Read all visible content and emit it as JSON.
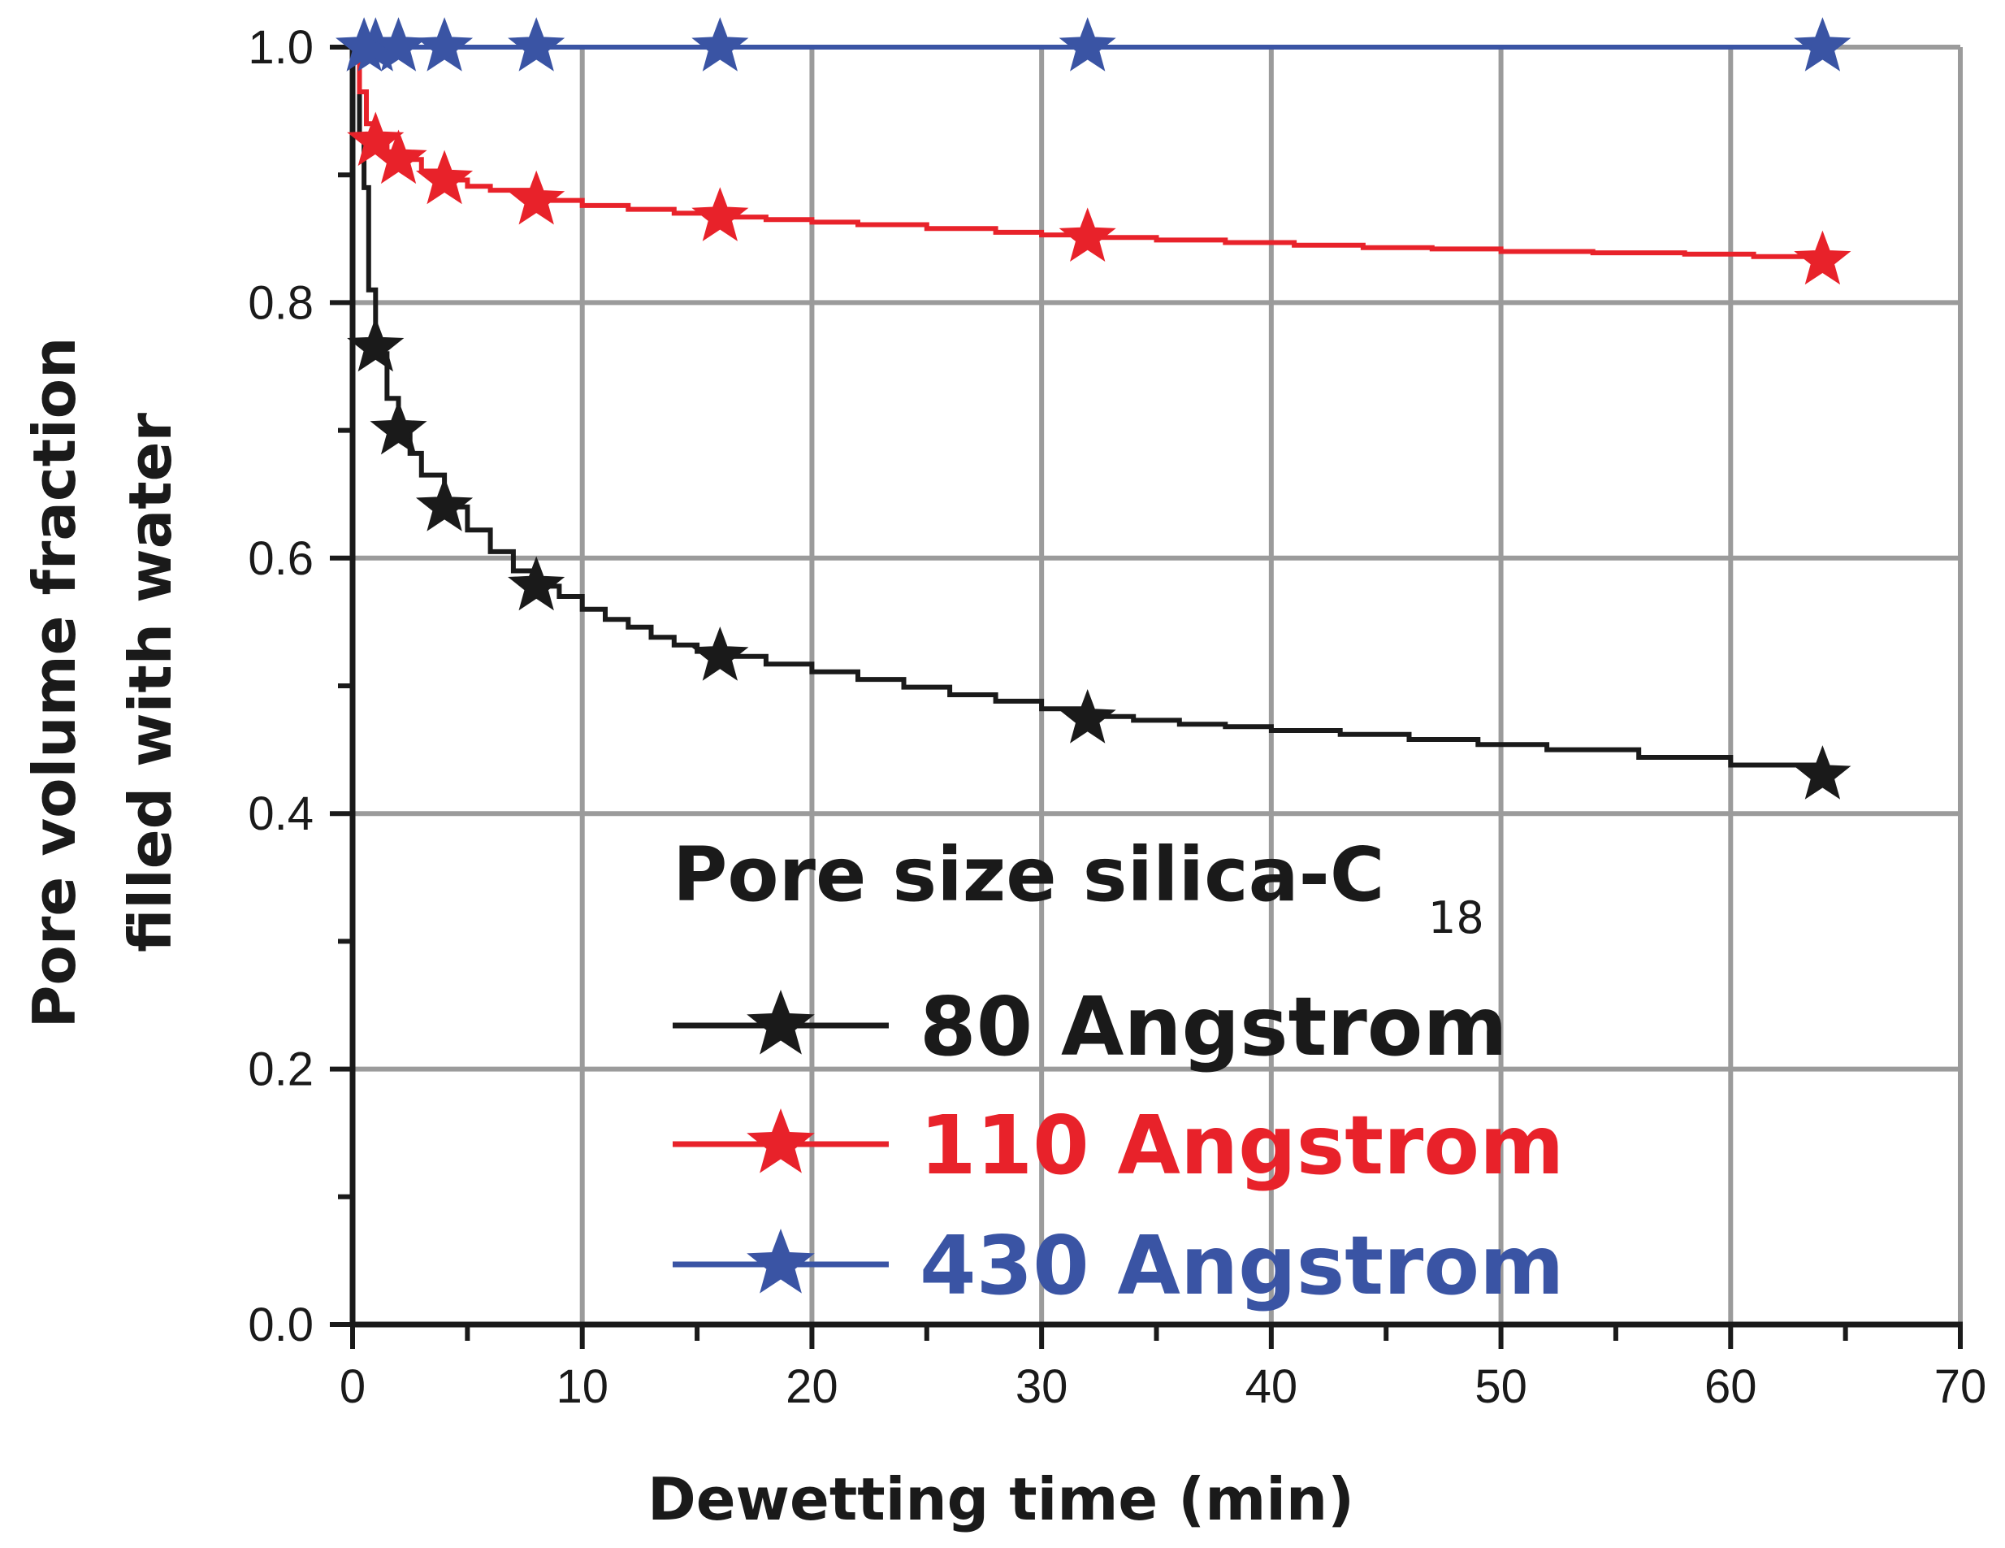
{
  "chart_data": {
    "type": "line",
    "title": "",
    "xlabel": "Dewetting time (min)",
    "ylabel_line1": "Pore volume fraction",
    "ylabel_line2": "filled with water",
    "xlim": [
      0,
      70
    ],
    "ylim": [
      0,
      1.0
    ],
    "x_ticks": [
      "0",
      "10",
      "20",
      "30",
      "40",
      "50",
      "60",
      "70"
    ],
    "y_ticks": [
      "0.0",
      "0.2",
      "0.4",
      "0.6",
      "0.8",
      "1.0"
    ],
    "grid": true,
    "legend": {
      "title_main": "Pore size silica-C",
      "title_sub": "18",
      "placement": "bottom-right"
    },
    "series": [
      {
        "name": "80 Angstrom",
        "color": "#1a1a1a",
        "marker": "star",
        "markers_x": [
          1,
          2,
          4,
          8,
          16,
          32,
          64
        ],
        "markers_y": [
          0.765,
          0.7,
          0.64,
          0.578,
          0.523,
          0.474,
          0.43
        ],
        "curve_x": [
          0,
          0.3,
          0.5,
          0.7,
          1.0,
          1.2,
          1.5,
          2.0,
          2.5,
          3.0,
          4.0,
          5.0,
          6.0,
          7.0,
          8.0,
          9.0,
          10.0,
          11.0,
          12.0,
          13.0,
          14.0,
          15.0,
          16.0,
          18.0,
          20.0,
          22.0,
          24.0,
          26.0,
          28.0,
          30.0,
          32.0,
          34.0,
          36.0,
          38.0,
          40.0,
          43.0,
          46.0,
          49.0,
          52.0,
          56.0,
          60.0,
          64.0
        ],
        "curve_y": [
          1.0,
          0.93,
          0.89,
          0.81,
          0.765,
          0.76,
          0.725,
          0.7,
          0.682,
          0.665,
          0.64,
          0.622,
          0.605,
          0.59,
          0.578,
          0.57,
          0.56,
          0.552,
          0.546,
          0.538,
          0.532,
          0.527,
          0.523,
          0.517,
          0.511,
          0.505,
          0.499,
          0.493,
          0.488,
          0.482,
          0.476,
          0.473,
          0.47,
          0.468,
          0.465,
          0.462,
          0.458,
          0.454,
          0.45,
          0.444,
          0.438,
          0.43
        ]
      },
      {
        "name": "110 Angstrom",
        "color": "#e8222a",
        "marker": "star",
        "markers_x": [
          1,
          2,
          4,
          8,
          16,
          32,
          64
        ],
        "markers_y": [
          0.926,
          0.912,
          0.896,
          0.88,
          0.867,
          0.851,
          0.833
        ],
        "curve_x": [
          0,
          0.3,
          0.6,
          1.0,
          1.5,
          2.0,
          3.0,
          4.0,
          5.0,
          6.0,
          8.0,
          10.0,
          12.0,
          14.0,
          16.0,
          18.0,
          20.0,
          22.0,
          25.0,
          28.0,
          30.0,
          32.0,
          35.0,
          38.0,
          41.0,
          44.0,
          47.0,
          50.0,
          54.0,
          58.0,
          61.0,
          64.0
        ],
        "curve_y": [
          1.0,
          0.965,
          0.94,
          0.926,
          0.918,
          0.912,
          0.903,
          0.896,
          0.891,
          0.888,
          0.88,
          0.876,
          0.873,
          0.87,
          0.867,
          0.865,
          0.863,
          0.861,
          0.858,
          0.855,
          0.853,
          0.851,
          0.849,
          0.847,
          0.845,
          0.843,
          0.842,
          0.84,
          0.839,
          0.838,
          0.836,
          0.833
        ]
      },
      {
        "name": "430 Angstrom",
        "color": "#3a54a4",
        "marker": "star",
        "markers_x": [
          0.5,
          1,
          2,
          4,
          8,
          16,
          32,
          64
        ],
        "markers_y": [
          1.0,
          1.0,
          1.0,
          1.0,
          1.0,
          1.0,
          1.0,
          1.0
        ],
        "curve_x": [
          0,
          64
        ],
        "curve_y": [
          1.0,
          1.0
        ]
      }
    ]
  }
}
